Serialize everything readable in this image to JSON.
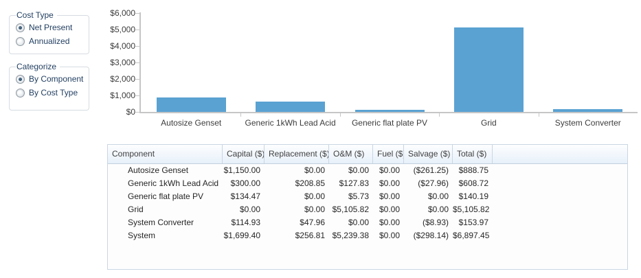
{
  "panel": {
    "cost_type": {
      "label": "Cost Type",
      "options": [
        {
          "label": "Net Present",
          "selected": true
        },
        {
          "label": "Annualized",
          "selected": false
        }
      ]
    },
    "categorize": {
      "label": "Categorize",
      "options": [
        {
          "label": "By Component",
          "selected": true
        },
        {
          "label": "By Cost Type",
          "selected": false
        }
      ]
    }
  },
  "chart_data": {
    "type": "bar",
    "title": "",
    "xlabel": "",
    "ylabel": "",
    "categories": [
      "Autosize Genset",
      "Generic 1kWh Lead Acid",
      "Generic flat plate PV",
      "Grid",
      "System Converter"
    ],
    "values": [
      888.75,
      608.72,
      140.19,
      5105.82,
      153.97
    ],
    "ylim": [
      0,
      6000
    ],
    "yticks": [
      {
        "value": 0,
        "label": "$0"
      },
      {
        "value": 1000,
        "label": "$1,000"
      },
      {
        "value": 2000,
        "label": "$2,000"
      },
      {
        "value": 3000,
        "label": "$3,000"
      },
      {
        "value": 4000,
        "label": "$4,000"
      },
      {
        "value": 5000,
        "label": "$5,000"
      },
      {
        "value": 6000,
        "label": "$6,000"
      }
    ],
    "grid": false,
    "legend": "none",
    "bar_color": "#5aa2d2"
  },
  "table": {
    "columns": [
      "Component",
      "Capital ($)",
      "Replacement ($)",
      "O&M ($)",
      "Fuel ($)",
      "Salvage ($)",
      "Total ($)"
    ],
    "rows": [
      [
        "Autosize Genset",
        "$1,150.00",
        "$0.00",
        "$0.00",
        "$0.00",
        "($261.25)",
        "$888.75"
      ],
      [
        "Generic 1kWh Lead Acid",
        "$300.00",
        "$208.85",
        "$127.83",
        "$0.00",
        "($27.96)",
        "$608.72"
      ],
      [
        "Generic flat plate PV",
        "$134.47",
        "$0.00",
        "$5.73",
        "$0.00",
        "$0.00",
        "$140.19"
      ],
      [
        "Grid",
        "$0.00",
        "$0.00",
        "$5,105.82",
        "$0.00",
        "$0.00",
        "$5,105.82"
      ],
      [
        "System Converter",
        "$114.93",
        "$47.96",
        "$0.00",
        "$0.00",
        "($8.93)",
        "$153.97"
      ],
      [
        "System",
        "$1,699.40",
        "$256.81",
        "$5,239.38",
        "$0.00",
        "($298.14)",
        "$6,897.45"
      ]
    ]
  }
}
